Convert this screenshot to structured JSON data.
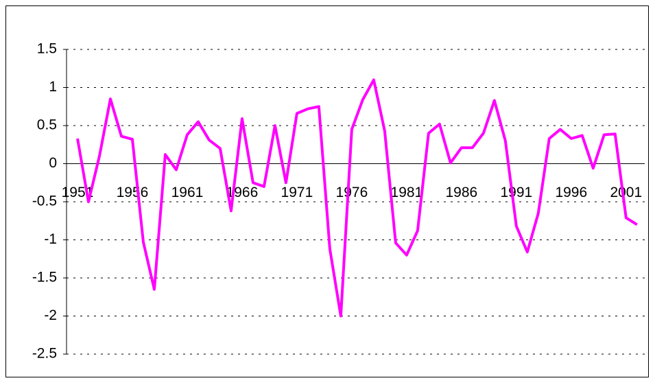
{
  "chart_data": {
    "type": "line",
    "x": [
      1951,
      1952,
      1953,
      1954,
      1955,
      1956,
      1957,
      1958,
      1959,
      1960,
      1961,
      1962,
      1963,
      1964,
      1965,
      1966,
      1967,
      1968,
      1969,
      1970,
      1971,
      1972,
      1973,
      1974,
      1975,
      1976,
      1977,
      1978,
      1979,
      1980,
      1981,
      1982,
      1983,
      1984,
      1985,
      1986,
      1987,
      1988,
      1989,
      1990,
      1991,
      1992,
      1993,
      1994,
      1995,
      1996,
      1997,
      1998,
      1999,
      2000,
      2001,
      2002
    ],
    "series": [
      {
        "color": "#ff00ff",
        "values": [
          0.33,
          -0.5,
          0.1,
          0.85,
          0.36,
          0.32,
          -1.03,
          -1.65,
          0.12,
          -0.08,
          0.38,
          0.55,
          0.31,
          0.2,
          -0.62,
          0.59,
          -0.25,
          -0.3,
          0.5,
          -0.25,
          0.66,
          0.72,
          0.75,
          -1.12,
          -2.0,
          0.45,
          0.84,
          1.1,
          0.43,
          -1.04,
          -1.2,
          -0.88,
          0.4,
          0.52,
          0.01,
          0.21,
          0.21,
          0.4,
          0.83,
          0.3,
          -0.82,
          -1.16,
          -0.65,
          0.33,
          0.45,
          0.33,
          0.37,
          -0.06,
          0.38,
          0.39,
          -0.71,
          -0.8
        ]
      }
    ],
    "xlim": [
      1950,
      2002.7
    ],
    "xticks": [
      1951,
      1956,
      1961,
      1966,
      1971,
      1976,
      1981,
      1986,
      1991,
      1996,
      2001
    ],
    "ylim": [
      -2.5,
      1.5
    ],
    "yticks": [
      -2.5,
      -2,
      -1.5,
      -1,
      -0.5,
      0,
      0.5,
      1,
      1.5
    ],
    "grid": true
  }
}
